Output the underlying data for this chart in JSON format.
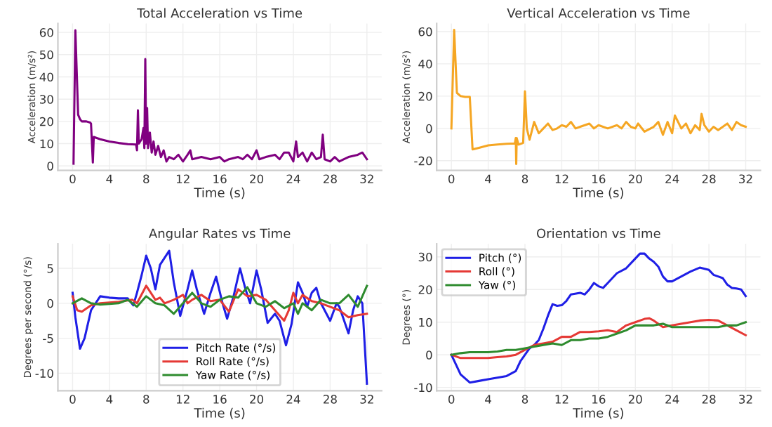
{
  "chart_data": [
    {
      "type": "line",
      "title": "Total Acceleration vs Time",
      "xlabel": "Time (s)",
      "ylabel": "Acceleration (m/s²)",
      "xlim": [
        -1.6,
        33.6
      ],
      "ylim": [
        -2,
        64
      ],
      "xticks": [
        0,
        4,
        8,
        12,
        16,
        20,
        24,
        28,
        32
      ],
      "yticks": [
        0,
        10,
        20,
        30,
        40,
        50,
        60
      ],
      "grid": true,
      "legend": false,
      "series": [
        {
          "color": "#800080",
          "x": [
            0.1,
            0.3,
            0.6,
            0.8,
            1.0,
            1.5,
            1.9,
            2.0,
            2.2,
            2.3,
            3,
            4,
            5,
            6,
            6.9,
            7.0,
            7.1,
            7.2,
            7.5,
            7.7,
            7.8,
            7.9,
            8.0,
            8.1,
            8.2,
            8.4,
            8.6,
            8.8,
            9.0,
            9.3,
            9.6,
            9.9,
            10.2,
            10.5,
            11,
            11.5,
            12,
            12.5,
            12.8,
            13,
            14,
            15,
            16,
            16.5,
            17,
            18,
            18.5,
            19,
            19.5,
            20,
            20.3,
            21,
            22,
            22.5,
            23,
            23.5,
            24,
            24.3,
            24.5,
            25,
            25.5,
            26,
            26.5,
            27,
            27.2,
            27.4,
            28,
            28.5,
            29,
            29.5,
            30,
            31,
            31.5,
            32
          ],
          "values": [
            1,
            61,
            23,
            21,
            20,
            20,
            19.5,
            19,
            1.5,
            13,
            12,
            11,
            10.3,
            9.8,
            9.6,
            7,
            25,
            10,
            12,
            17,
            8,
            48,
            10,
            26,
            8,
            15,
            6,
            11,
            5,
            9,
            4,
            7,
            2,
            4,
            3,
            5,
            2,
            5,
            7,
            3,
            4,
            3,
            4,
            2,
            3,
            4,
            3,
            5,
            3,
            7,
            3,
            4,
            5,
            3,
            6,
            6,
            2,
            11,
            4,
            6,
            2,
            6,
            3,
            4,
            14,
            3,
            2,
            4,
            2,
            3,
            4,
            5,
            6,
            3
          ]
        }
      ]
    },
    {
      "type": "line",
      "title": "Vertical Acceleration vs Time",
      "xlabel": "Time (s)",
      "ylabel": "Acceleration (m/s²)",
      "xlim": [
        -1.6,
        33.6
      ],
      "ylim": [
        -26,
        65
      ],
      "xticks": [
        0,
        4,
        8,
        12,
        16,
        20,
        24,
        28,
        32
      ],
      "yticks": [
        -20,
        0,
        20,
        40,
        60
      ],
      "grid": true,
      "legend": false,
      "series": [
        {
          "color": "#f5a623",
          "x": [
            0,
            0.3,
            0.6,
            1,
            1.5,
            2,
            2.3,
            3,
            4,
            5,
            6,
            6.9,
            7.0,
            7.05,
            7.1,
            7.3,
            7.8,
            8.0,
            8.2,
            8.5,
            9,
            9.5,
            10,
            10.5,
            11,
            11.5,
            12,
            12.5,
            13,
            13.5,
            14,
            15,
            15.5,
            16,
            17,
            18,
            18.5,
            19,
            19.5,
            20,
            20.3,
            21,
            22,
            22.5,
            23,
            23.5,
            24,
            24.3,
            25,
            25.5,
            26,
            26.5,
            27,
            27.2,
            27.5,
            28,
            28.5,
            29,
            30,
            30.5,
            31,
            31.5,
            32
          ],
          "values": [
            0,
            61,
            22,
            20,
            19.5,
            19.5,
            -13,
            -12,
            -10.5,
            -10,
            -9.5,
            -9.3,
            -6,
            -22,
            -6,
            -10,
            -9,
            23,
            0,
            -7,
            4,
            -3,
            0,
            3,
            -1,
            0,
            2,
            1,
            4,
            0,
            1,
            3,
            0,
            2,
            0,
            2,
            0,
            4,
            1,
            0,
            3,
            -2,
            1,
            4,
            -4,
            4,
            -3,
            8,
            0,
            3,
            -3,
            2,
            -1,
            9,
            2,
            -2,
            1,
            -1,
            3,
            -1,
            4,
            2,
            1
          ]
        }
      ]
    },
    {
      "type": "line",
      "title": "Angular Rates vs Time",
      "xlabel": "Time (s)",
      "ylabel": "Degrees per second (°/s)",
      "xlim": [
        -1.6,
        33.6
      ],
      "ylim": [
        -12.5,
        8.5
      ],
      "xticks": [
        0,
        4,
        8,
        12,
        16,
        20,
        24,
        28,
        32
      ],
      "yticks": [
        -10,
        -5,
        0,
        5
      ],
      "grid": true,
      "legend": "bottom",
      "series": [
        {
          "name": "Pitch Rate (°/s)",
          "color": "#1f1fe6",
          "x": [
            0,
            0.3,
            0.8,
            1.3,
            2,
            3,
            4,
            5,
            6,
            6.6,
            7,
            7.5,
            8,
            8.5,
            9,
            9.5,
            10.5,
            11,
            11.7,
            12.5,
            13,
            13.5,
            14.3,
            15,
            15.6,
            16.3,
            16.8,
            17.5,
            18.2,
            18.8,
            19.3,
            20,
            20.5,
            21.2,
            22,
            22.5,
            23.2,
            23.8,
            24.5,
            25,
            25.5,
            26,
            26.5,
            27,
            28,
            28.7,
            29,
            30,
            30.5,
            31,
            31.5,
            32
          ],
          "values": [
            1.5,
            -2,
            -6.5,
            -5,
            -1,
            1,
            0.8,
            0.7,
            0.7,
            -0.3,
            1.5,
            4,
            6.8,
            5,
            2,
            5.5,
            7.5,
            3,
            -1.8,
            2,
            4.7,
            2,
            -1.5,
            1.5,
            3.8,
            0,
            -2.2,
            1,
            5,
            2,
            0,
            4.7,
            2,
            -2.8,
            -1.5,
            -2.5,
            -6,
            -3,
            3,
            1.5,
            -0.5,
            1.5,
            2.2,
            0,
            -2.5,
            0,
            -0.5,
            -4.3,
            -1,
            1,
            0,
            -11.5
          ]
        },
        {
          "name": "Roll Rate (°/s)",
          "color": "#e53935",
          "x": [
            0,
            0.5,
            1,
            2,
            3,
            5,
            6.5,
            7,
            8,
            8.5,
            9,
            9.5,
            10,
            11,
            12,
            12.5,
            13,
            14,
            15,
            16,
            17,
            18,
            19,
            20,
            21,
            22,
            23,
            23.5,
            24,
            24.5,
            25,
            26,
            27,
            28,
            29,
            30,
            31,
            32
          ],
          "values": [
            1,
            -1,
            -1.2,
            -0.3,
            0,
            0.2,
            0.5,
            0,
            2.5,
            1.5,
            0.5,
            0.8,
            0,
            0.5,
            1.2,
            0,
            0.5,
            1.2,
            0.3,
            0.5,
            -1.2,
            2,
            1,
            1.2,
            0.5,
            -1,
            -2.5,
            -1,
            1.5,
            0,
            1.2,
            0.3,
            0,
            -0.5,
            -1,
            -2,
            -1.7,
            -1.5
          ]
        },
        {
          "name": "Yaw Rate (°/s)",
          "color": "#2e8b2e",
          "x": [
            0,
            1,
            2,
            3,
            5,
            6,
            7,
            8,
            9,
            10,
            11,
            12,
            13,
            14,
            15,
            16,
            17,
            18,
            19,
            20,
            21,
            22,
            23,
            24,
            24.5,
            25,
            26,
            27,
            28,
            29,
            30,
            31,
            32
          ],
          "values": [
            0,
            0.7,
            0,
            -0.2,
            0,
            0.5,
            -0.5,
            1,
            0,
            -0.3,
            -1.5,
            0,
            1.5,
            0,
            -0.5,
            0.5,
            1,
            0.8,
            2.3,
            0,
            -0.5,
            0.3,
            -0.7,
            0,
            -1.5,
            0,
            -1,
            0.5,
            0,
            0,
            1.2,
            -0.5,
            2.5
          ]
        }
      ]
    },
    {
      "type": "line",
      "title": "Orientation vs Time",
      "xlabel": "Time (s)",
      "ylabel": "Degrees (°)",
      "xlim": [
        -1.6,
        33.6
      ],
      "ylim": [
        -11,
        34
      ],
      "xticks": [
        0,
        4,
        8,
        12,
        16,
        20,
        24,
        28,
        32
      ],
      "yticks": [
        -10,
        0,
        10,
        20,
        30
      ],
      "grid": true,
      "legend": "top left",
      "series": [
        {
          "name": "Pitch (°)",
          "color": "#1f1fe6",
          "x": [
            0,
            0.5,
            1,
            2,
            3,
            4,
            5,
            6,
            7,
            7.5,
            8,
            8.5,
            9,
            9.5,
            10,
            10.5,
            11,
            11.5,
            12,
            12.5,
            13,
            14,
            14.5,
            15,
            15.5,
            16,
            16.5,
            17,
            18,
            19,
            20,
            20.5,
            21,
            21.5,
            22,
            22.5,
            23,
            23.5,
            24,
            25,
            26,
            27,
            28,
            28.5,
            29,
            29.5,
            30,
            30.5,
            31,
            31.5,
            32
          ],
          "values": [
            0,
            -3,
            -6,
            -8.5,
            -8,
            -7.5,
            -7,
            -6.5,
            -5,
            -2,
            0,
            2,
            3,
            4.5,
            8,
            12,
            15.5,
            15,
            15.2,
            16.5,
            18.5,
            19,
            18.5,
            20,
            22,
            21,
            20.5,
            22,
            25,
            26.5,
            29.5,
            31,
            31,
            29.5,
            28.5,
            27,
            24,
            22.5,
            22.5,
            24,
            25.5,
            26.7,
            26,
            24.5,
            24,
            23.5,
            21.5,
            20.5,
            20.3,
            20,
            18
          ]
        },
        {
          "name": "Roll (°)",
          "color": "#e53935",
          "x": [
            0,
            1,
            2,
            4,
            5,
            6,
            7,
            8,
            9,
            10,
            11,
            12,
            13,
            14,
            15,
            16,
            17,
            18,
            19,
            20,
            21,
            21.5,
            22,
            23,
            24,
            25,
            26,
            27,
            28,
            29,
            30,
            31,
            32
          ],
          "values": [
            0,
            -1,
            -1,
            -1,
            -0.7,
            -0.5,
            0,
            1.5,
            3,
            3.5,
            4,
            5.5,
            5.5,
            7,
            7,
            7.2,
            7.5,
            7,
            9,
            10,
            11,
            11.2,
            10.5,
            8.5,
            9,
            9.5,
            10,
            10.5,
            10.7,
            10.5,
            9,
            7.5,
            6
          ]
        },
        {
          "name": "Yaw (°)",
          "color": "#2e8b2e",
          "x": [
            0,
            1,
            2,
            4,
            5,
            6,
            7,
            8,
            9,
            10,
            11,
            12,
            13,
            14,
            15,
            16,
            17,
            18,
            19,
            20,
            21,
            22,
            23,
            24,
            25,
            26,
            27,
            28,
            29,
            30,
            31,
            32
          ],
          "values": [
            0,
            0.5,
            0.8,
            0.8,
            1,
            1.5,
            1.5,
            2,
            2.5,
            3,
            3.5,
            3,
            4.5,
            4.5,
            5,
            5,
            5.5,
            6.5,
            7.5,
            9,
            9,
            9,
            9.5,
            8.5,
            8.5,
            8.5,
            8.5,
            8.5,
            8.5,
            9,
            9,
            10
          ]
        }
      ]
    }
  ]
}
